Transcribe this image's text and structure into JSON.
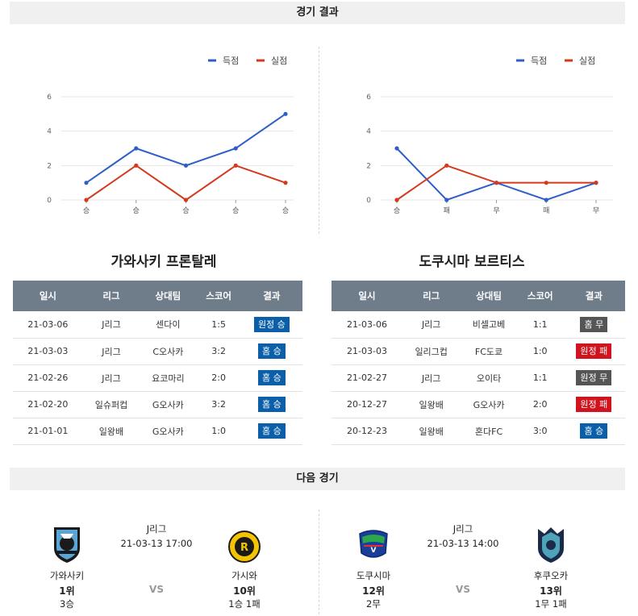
{
  "results_header": "경기 결과",
  "next_header": "다음 경기",
  "legend": {
    "score": "득점",
    "conceded": "실점",
    "score_color": "#2e5fc7",
    "conceded_color": "#d33a1d"
  },
  "chart_data": [
    {
      "type": "line",
      "categories": [
        "승",
        "승",
        "승",
        "승",
        "승"
      ],
      "series": [
        {
          "name": "득점",
          "values": [
            1,
            3,
            2,
            3,
            5
          ]
        },
        {
          "name": "실점",
          "values": [
            0,
            2,
            0,
            2,
            1
          ]
        }
      ],
      "yticks": [
        0,
        2,
        4,
        6
      ],
      "ylim": [
        0,
        6
      ],
      "legend_position": "top-right"
    },
    {
      "type": "line",
      "categories": [
        "승",
        "패",
        "무",
        "패",
        "무"
      ],
      "series": [
        {
          "name": "득점",
          "values": [
            3,
            0,
            1,
            0,
            1
          ]
        },
        {
          "name": "실점",
          "values": [
            0,
            2,
            1,
            1,
            1
          ]
        }
      ],
      "yticks": [
        0,
        2,
        4,
        6
      ],
      "ylim": [
        0,
        6
      ],
      "legend_position": "top-right"
    }
  ],
  "teams": [
    {
      "name": "가와사키 프론탈레",
      "columns": [
        "일시",
        "리그",
        "상대팀",
        "스코어",
        "결과"
      ],
      "rows": [
        {
          "date": "21-03-06",
          "league": "J리그",
          "opponent": "센다이",
          "score": "1:5",
          "result": "원정 승",
          "color": "blue"
        },
        {
          "date": "21-03-03",
          "league": "J리그",
          "opponent": "C오사카",
          "score": "3:2",
          "result": "홈 승",
          "color": "blue"
        },
        {
          "date": "21-02-26",
          "league": "J리그",
          "opponent": "요코마리",
          "score": "2:0",
          "result": "홈 승",
          "color": "blue"
        },
        {
          "date": "21-02-20",
          "league": "일슈퍼컵",
          "opponent": "G오사카",
          "score": "3:2",
          "result": "홈 승",
          "color": "blue"
        },
        {
          "date": "21-01-01",
          "league": "일왕배",
          "opponent": "G오사카",
          "score": "1:0",
          "result": "홈 승",
          "color": "blue"
        }
      ]
    },
    {
      "name": "도쿠시마 보르티스",
      "columns": [
        "일시",
        "리그",
        "상대팀",
        "스코어",
        "결과"
      ],
      "rows": [
        {
          "date": "21-03-06",
          "league": "J리그",
          "opponent": "비셀고베",
          "score": "1:1",
          "result": "홈 무",
          "color": "gray"
        },
        {
          "date": "21-03-03",
          "league": "일리그컵",
          "opponent": "FC도쿄",
          "score": "1:0",
          "result": "원정 패",
          "color": "red"
        },
        {
          "date": "21-02-27",
          "league": "J리그",
          "opponent": "오이타",
          "score": "1:1",
          "result": "원정 무",
          "color": "gray"
        },
        {
          "date": "20-12-27",
          "league": "일왕배",
          "opponent": "G오사카",
          "score": "2:0",
          "result": "원정 패",
          "color": "red"
        },
        {
          "date": "20-12-23",
          "league": "일왕배",
          "opponent": "혼다FC",
          "score": "3:0",
          "result": "홈 승",
          "color": "blue"
        }
      ]
    }
  ],
  "next_matches": [
    {
      "league": "J리그",
      "datetime": "21-03-13 17:00",
      "vs": "VS",
      "home": {
        "name": "가와사키",
        "rank": "1위",
        "record": "3승",
        "logo": "kawasaki-logo"
      },
      "away": {
        "name": "가시와",
        "rank": "10위",
        "record": "1승 1패",
        "logo": "kashiwa-logo"
      }
    },
    {
      "league": "J리그",
      "datetime": "21-03-13 14:00",
      "vs": "VS",
      "home": {
        "name": "도쿠시마",
        "rank": "12위",
        "record": "2무",
        "logo": "tokushima-logo"
      },
      "away": {
        "name": "후쿠오카",
        "rank": "13위",
        "record": "1무 1패",
        "logo": "fukuoka-logo"
      }
    }
  ]
}
